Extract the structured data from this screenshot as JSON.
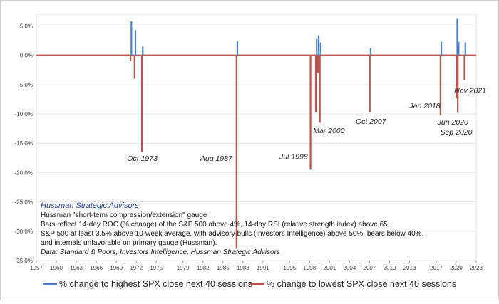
{
  "chart_data": {
    "type": "bar",
    "xlim": [
      1957,
      2023
    ],
    "ylim": [
      -35,
      7
    ],
    "x_ticks": [
      "1957",
      "1960",
      "1963",
      "1966",
      "1969",
      "1972",
      "1975",
      "1979",
      "1982",
      "1985",
      "1988",
      "1991",
      "1995",
      "1998",
      "2001",
      "2004",
      "2007",
      "2010",
      "2013",
      "2017",
      "2020",
      "2023"
    ],
    "x_tick_values": [
      1957,
      1960,
      1963,
      1966,
      1969,
      1972,
      1975,
      1979,
      1982,
      1985,
      1988,
      1991,
      1995,
      1998,
      2001,
      2004,
      2007,
      2010,
      2013,
      2017,
      2020,
      2023
    ],
    "y_ticks": [
      "5.0%",
      "0.0%",
      "-5.0%",
      "-10.0%",
      "-15.0%",
      "-20.0%",
      "-25.0%",
      "-30.0%",
      "-35.0%"
    ],
    "y_tick_values": [
      5,
      0,
      -5,
      -10,
      -15,
      -20,
      -25,
      -30,
      -35
    ],
    "grid": true,
    "legend": "bottom",
    "series": [
      {
        "name": "% change to highest SPX close next 40 sessions",
        "color": "#4f7fc4",
        "x": [
          1971.2,
          1971.8,
          1972.9,
          1987.1,
          1999.0,
          1999.3,
          1999.6,
          2007.1,
          2017.7,
          2020.1,
          2020.3,
          2021.3
        ],
        "values": [
          5.8,
          4.3,
          1.5,
          2.4,
          2.8,
          3.4,
          2.2,
          1.2,
          2.3,
          6.3,
          2.3,
          2.2
        ]
      },
      {
        "name": "% change to lowest SPX close next 40 sessions",
        "color": "#c0504d",
        "x": [
          1971.2,
          1971.8,
          1972.9,
          1987.1,
          1998.2,
          1999.0,
          1999.3,
          1999.6,
          2007.1,
          2017.7,
          2020.1,
          2020.3,
          2021.3
        ],
        "values": [
          -1.0,
          -4.0,
          -16.5,
          -33.0,
          -19.5,
          -9.7,
          -3.0,
          -11.5,
          -9.7,
          -10.2,
          -7.3,
          -9.8,
          -4.2
        ]
      }
    ],
    "annotations": [
      {
        "text": "Oct 1973",
        "x": 1972.9,
        "y": -18.0
      },
      {
        "text": "Aug 1987",
        "x": 1984.0,
        "y": -18.0
      },
      {
        "text": "Jul 1998",
        "x": 1995.6,
        "y": -17.7
      },
      {
        "text": "Mar 2000",
        "x": 2000.9,
        "y": -13.3
      },
      {
        "text": "Oct 2007",
        "x": 2007.2,
        "y": -11.7
      },
      {
        "text": "Jan 2018",
        "x": 2015.3,
        "y": -9.0
      },
      {
        "text": "Jun 2020",
        "x": 2019.5,
        "y": -11.8
      },
      {
        "text": "Sep 2020",
        "x": 2020.0,
        "y": -13.5
      },
      {
        "text": "Nov 2021",
        "x": 2022.1,
        "y": -6.4
      }
    ]
  },
  "notes": {
    "heading": "Hussman Strategic Advisors",
    "line1": "Hussman \"short-term compression/extension\" gauge",
    "line2": "Bars reflect 14-day ROC (% change) of the S&P 500 above 4%, 14-day RSI (relative strength index) above 65,",
    "line3": "S&P 500 at least 3.5% above 10-week average, with advisory bulls (Investors Intelligence) above 50%, bears below 40%,",
    "line4": "and internals unfavorable on primary gauge (Hussman).",
    "source": "Data: Standard & Poors, Investors Intelligence, Hussman Strategic Advisors"
  }
}
